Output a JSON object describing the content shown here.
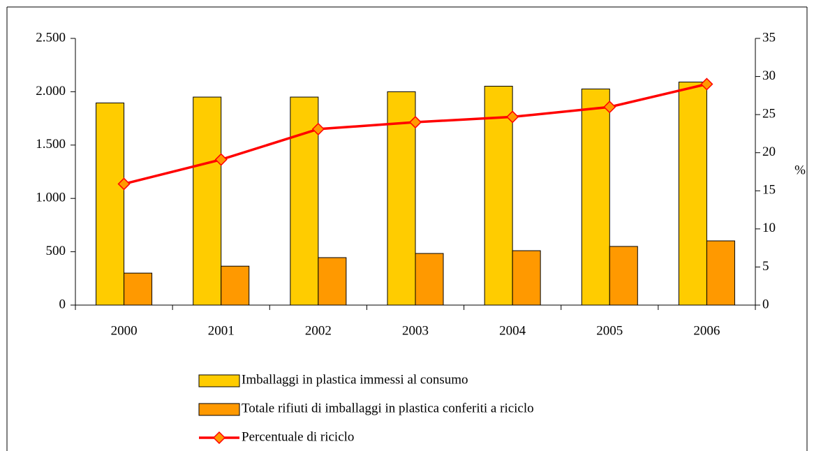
{
  "chart_data": {
    "type": "bar",
    "categories": [
      "2000",
      "2001",
      "2002",
      "2003",
      "2004",
      "2005",
      "2006"
    ],
    "series": [
      {
        "name": "Imballaggi in plastica immessi al consumo",
        "type": "bar",
        "color": "#FFCC00",
        "values": [
          1895,
          1950,
          1950,
          2000,
          2052,
          2026,
          2091
        ]
      },
      {
        "name": "Totale rifiuti di imballaggi in plastica conferiti a riciclo",
        "type": "bar",
        "color": "#FF9900",
        "values": [
          300,
          365,
          445,
          484,
          510,
          550,
          602
        ]
      },
      {
        "name": "Percentuale di riciclo",
        "type": "line",
        "axis": "y2",
        "color": "#FF0000",
        "marker_color": "#FF9900",
        "values": [
          15.9,
          19.1,
          23.1,
          24.0,
          24.7,
          26.0,
          29.0
        ]
      }
    ],
    "ylim": [
      0,
      2500
    ],
    "yticks": [
      0,
      {
        "value": 500,
        "label": "500"
      },
      {
        "value": 1000,
        "label": "1.000"
      },
      {
        "value": 1500,
        "label": "1.500"
      },
      {
        "value": 2000,
        "label": "2.000"
      },
      {
        "value": 2500,
        "label": "2.500"
      }
    ],
    "y2lim": [
      0,
      35
    ],
    "y2ticks": [
      0,
      5,
      10,
      15,
      20,
      25,
      30,
      35
    ],
    "y2label": "%",
    "grid": false
  }
}
